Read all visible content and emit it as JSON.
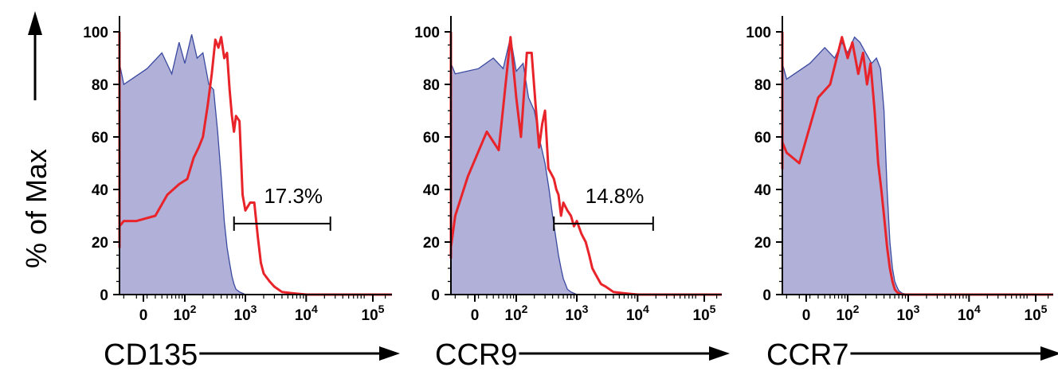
{
  "ylabel": "% of Max",
  "colors": {
    "control_fill": "#b0b0d8",
    "control_line": "#3a4aa0",
    "sample_line": "#e8232a",
    "axis": "#000000"
  },
  "y_ticks": [
    "0",
    "20",
    "40",
    "60",
    "80",
    "100"
  ],
  "x_ticks": [
    {
      "base": "0",
      "exp": ""
    },
    {
      "base": "10",
      "exp": "2"
    },
    {
      "base": "10",
      "exp": "3"
    },
    {
      "base": "10",
      "exp": "4"
    },
    {
      "base": "10",
      "exp": "5"
    }
  ],
  "chart_data": [
    {
      "type": "area",
      "xlabel": "CD135",
      "ylabel": "% of Max",
      "x_scale": "biexponential",
      "ylim": [
        0,
        100
      ],
      "gate": {
        "label": "17.3%",
        "range": [
          650,
          25000
        ],
        "y": 27
      },
      "series": [
        {
          "role": "control (filled)",
          "x": [
            -120,
            -100,
            -80,
            -60,
            -40,
            -20,
            0,
            20,
            40,
            60,
            80,
            100,
            130,
            160,
            200,
            250,
            300,
            350,
            400,
            450,
            500,
            550,
            600,
            650,
            700,
            800,
            900,
            1000
          ],
          "y": [
            85,
            88,
            82,
            90,
            84,
            88,
            80,
            86,
            92,
            84,
            96,
            88,
            99,
            90,
            92,
            80,
            78,
            62,
            45,
            28,
            18,
            12,
            7,
            4,
            2,
            1,
            0.5,
            0
          ]
        },
        {
          "role": "sample (red line)",
          "x": [
            -140,
            -130,
            -110,
            -90,
            -70,
            -50,
            -30,
            -10,
            0,
            10,
            30,
            50,
            80,
            110,
            140,
            170,
            200,
            240,
            280,
            320,
            360,
            400,
            450,
            500,
            550,
            600,
            650,
            700,
            800,
            900,
            1000,
            1200,
            1400,
            1600,
            1800,
            2000,
            2500,
            3000,
            4000,
            6000,
            10000,
            100000,
            300000
          ],
          "y": [
            100,
            22,
            18,
            22,
            24,
            24,
            34,
            26,
            28,
            28,
            30,
            38,
            42,
            44,
            52,
            56,
            60,
            72,
            84,
            97,
            94,
            98,
            90,
            92,
            78,
            68,
            62,
            68,
            66,
            38,
            32,
            35,
            35,
            22,
            12,
            8,
            5,
            3,
            1,
            0.5,
            0,
            0,
            0
          ]
        }
      ]
    },
    {
      "type": "area",
      "xlabel": "CCR9",
      "ylabel": "% of Max",
      "x_scale": "biexponential",
      "ylim": [
        0,
        100
      ],
      "gate": {
        "label": "14.8%",
        "range": [
          420,
          18000
        ],
        "y": 27
      },
      "series": [
        {
          "role": "control (filled)",
          "x": [
            -120,
            -100,
            -80,
            -60,
            -40,
            -20,
            0,
            20,
            40,
            60,
            80,
            100,
            130,
            160,
            200,
            250,
            300,
            350,
            400,
            450,
            500,
            550,
            600,
            650,
            700,
            800,
            900,
            1000
          ],
          "y": [
            100,
            92,
            86,
            90,
            82,
            88,
            84,
            86,
            90,
            86,
            98,
            85,
            88,
            75,
            70,
            58,
            50,
            40,
            30,
            22,
            15,
            10,
            6,
            4,
            2,
            1,
            0.5,
            0
          ]
        },
        {
          "role": "sample (red line)",
          "x": [
            -140,
            -130,
            -110,
            -90,
            -70,
            -50,
            -30,
            -10,
            0,
            10,
            30,
            50,
            80,
            100,
            120,
            150,
            180,
            210,
            240,
            270,
            300,
            340,
            380,
            420,
            460,
            500,
            550,
            600,
            700,
            800,
            900,
            1000,
            1200,
            1400,
            1600,
            1800,
            2000,
            2500,
            3000,
            4000,
            6000,
            10000,
            100000,
            300000
          ],
          "y": [
            100,
            35,
            22,
            18,
            16,
            15,
            14,
            18,
            30,
            45,
            62,
            55,
            98,
            75,
            60,
            92,
            92,
            72,
            56,
            65,
            70,
            48,
            46,
            44,
            40,
            38,
            30,
            35,
            32,
            30,
            26,
            28,
            23,
            20,
            15,
            10,
            8,
            4,
            3,
            1,
            0.5,
            0,
            0,
            0
          ]
        }
      ]
    },
    {
      "type": "area",
      "xlabel": "CCR7",
      "ylabel": "% of Max",
      "x_scale": "biexponential",
      "ylim": [
        0,
        100
      ],
      "series": [
        {
          "role": "control (filled)",
          "x": [
            -120,
            -100,
            -80,
            -60,
            -40,
            -20,
            0,
            20,
            40,
            60,
            80,
            100,
            130,
            160,
            200,
            250,
            300,
            350,
            400,
            450,
            500,
            550,
            600,
            650,
            700,
            800,
            900,
            1000
          ],
          "y": [
            85,
            90,
            84,
            92,
            86,
            88,
            82,
            88,
            94,
            90,
            96,
            92,
            98,
            96,
            92,
            88,
            90,
            86,
            70,
            40,
            20,
            10,
            5,
            3,
            1.5,
            0.5,
            0.2,
            0
          ]
        },
        {
          "role": "sample (red line)",
          "x": [
            -140,
            -130,
            -110,
            -90,
            -70,
            -50,
            -30,
            -10,
            0,
            10,
            30,
            50,
            80,
            100,
            120,
            150,
            180,
            210,
            240,
            280,
            320,
            360,
            400,
            450,
            500,
            550,
            600,
            650,
            700,
            800,
            1000,
            10000,
            300000
          ],
          "y": [
            100,
            62,
            58,
            50,
            60,
            48,
            72,
            58,
            54,
            50,
            75,
            80,
            98,
            90,
            96,
            84,
            92,
            80,
            88,
            70,
            50,
            40,
            30,
            18,
            10,
            5,
            2,
            1,
            0.5,
            0,
            0,
            0,
            0
          ]
        }
      ]
    }
  ]
}
